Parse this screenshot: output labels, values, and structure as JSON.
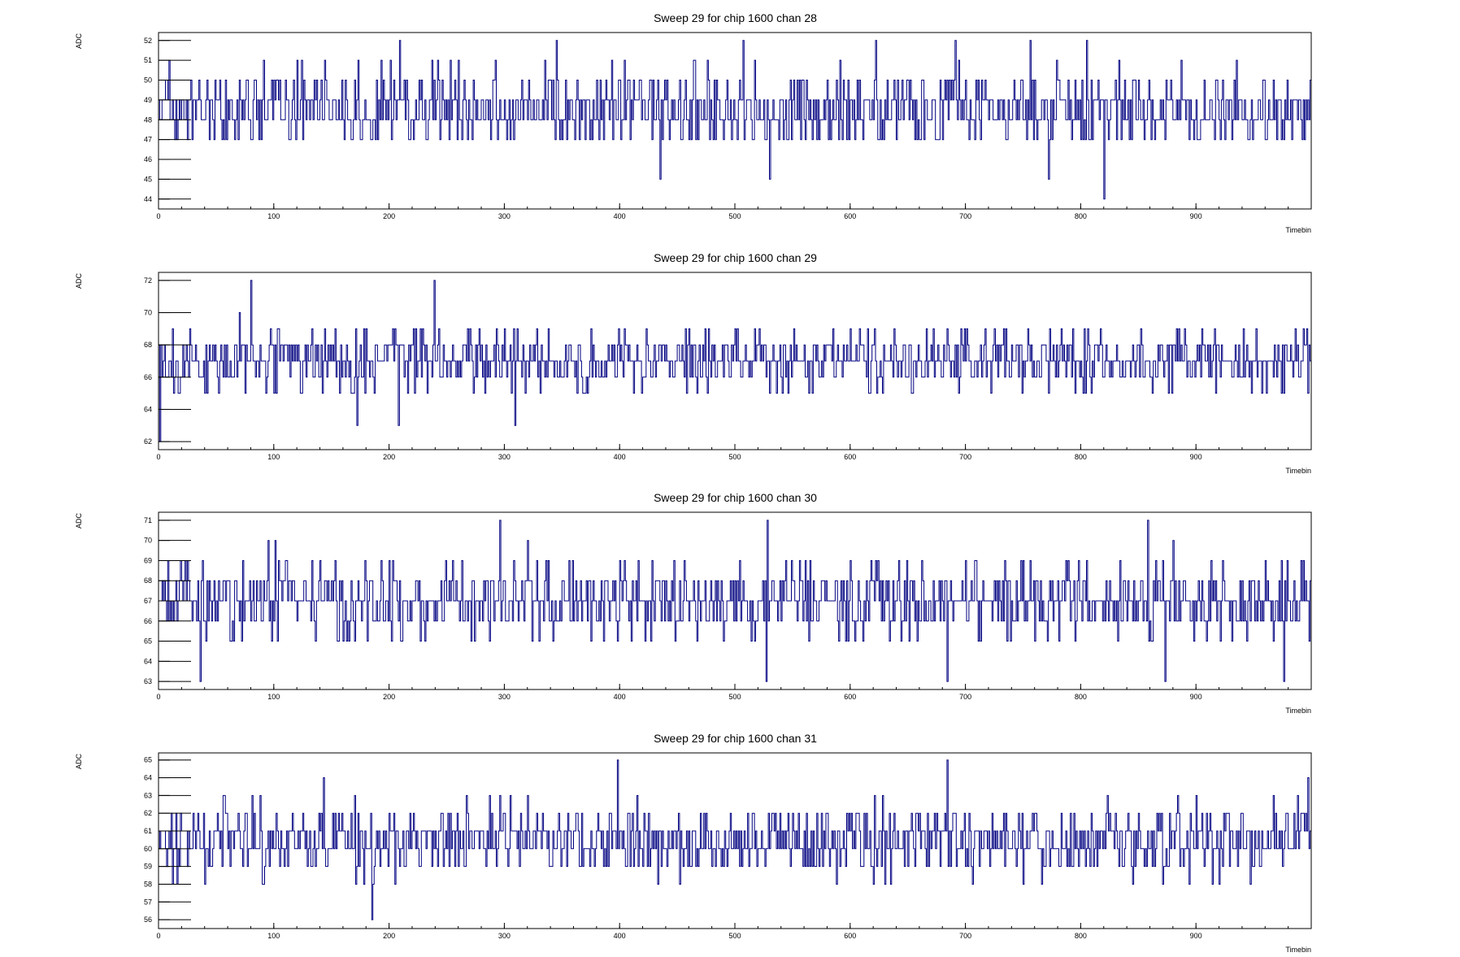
{
  "chart_data": [
    {
      "type": "line",
      "title": "Sweep 29 for chip 1600 chan 28",
      "xlabel": "Timebin",
      "ylabel": "ADC",
      "xlim": [
        0,
        1000
      ],
      "ylim": [
        43.5,
        52.4
      ],
      "x_ticks": [
        0,
        100,
        200,
        300,
        400,
        500,
        600,
        700,
        800,
        900
      ],
      "y_ticks": [
        44,
        45,
        46,
        47,
        48,
        49,
        50,
        51,
        52
      ],
      "series": [
        {
          "values_pattern": "step noise trace, 1000 timebins, mostly 47-51, occasional 44-46 and 52",
          "values": []
        }
      ],
      "baseline": 48.5,
      "peaks": [
        [
          209,
          52
        ],
        [
          345,
          52
        ],
        [
          507,
          52
        ],
        [
          622,
          52
        ],
        [
          691,
          52
        ],
        [
          756,
          52
        ],
        [
          805,
          52
        ],
        [
          820,
          44
        ],
        [
          435,
          45
        ],
        [
          530,
          45
        ],
        [
          772,
          45
        ]
      ],
      "seed": 28,
      "amp_lo": 47,
      "amp_hi": 51,
      "line_color": "#000080",
      "grid": false
    },
    {
      "type": "line",
      "title": "Sweep 29 for chip 1600 chan 29",
      "xlabel": "Timebin",
      "ylabel": "ADC",
      "xlim": [
        0,
        1000
      ],
      "ylim": [
        61.5,
        72.5
      ],
      "x_ticks": [
        0,
        100,
        200,
        300,
        400,
        500,
        600,
        700,
        800,
        900
      ],
      "y_ticks": [
        62,
        64,
        66,
        68,
        70,
        72
      ],
      "series": [
        {
          "values_pattern": "step noise trace, 1000 timebins, mostly 65-70, occasional 62-64 and 71-72",
          "values": []
        }
      ],
      "baseline": 67,
      "peaks": [
        [
          80,
          72
        ],
        [
          239,
          72
        ],
        [
          172,
          63
        ],
        [
          208,
          63
        ],
        [
          309,
          63
        ],
        [
          1,
          62
        ]
      ],
      "seed": 29,
      "amp_lo": 65,
      "amp_hi": 70,
      "line_color": "#000080",
      "grid": false
    },
    {
      "type": "line",
      "title": "Sweep 29 for chip 1600 chan 30",
      "xlabel": "Timebin",
      "ylabel": "ADC",
      "xlim": [
        0,
        1000
      ],
      "ylim": [
        62.6,
        71.4
      ],
      "x_ticks": [
        0,
        100,
        200,
        300,
        400,
        500,
        600,
        700,
        800,
        900
      ],
      "y_ticks": [
        63,
        64,
        65,
        66,
        67,
        68,
        69,
        70,
        71
      ],
      "series": [
        {
          "values_pattern": "step noise trace, 1000 timebins, mostly 65-70, occasional 63-64 and 71",
          "values": []
        }
      ],
      "baseline": 67,
      "peaks": [
        [
          296,
          71
        ],
        [
          528,
          71
        ],
        [
          858,
          71
        ],
        [
          36,
          63
        ],
        [
          527,
          63
        ],
        [
          684,
          63
        ],
        [
          873,
          63
        ],
        [
          976,
          63
        ]
      ],
      "seed": 30,
      "amp_lo": 65,
      "amp_hi": 70,
      "line_color": "#000080",
      "grid": false
    },
    {
      "type": "line",
      "title": "Sweep 29 for chip 1600 chan 31",
      "xlabel": "Timebin",
      "ylabel": "ADC",
      "xlim": [
        0,
        1000
      ],
      "ylim": [
        55.5,
        65.4
      ],
      "x_ticks": [
        0,
        100,
        200,
        300,
        400,
        500,
        600,
        700,
        800,
        900
      ],
      "y_ticks": [
        56,
        57,
        58,
        59,
        60,
        61,
        62,
        63,
        64,
        65
      ],
      "series": [
        {
          "values_pattern": "step noise trace, 1000 timebins, mostly 58-63, occasional 56-57 and 64-65",
          "values": []
        }
      ],
      "baseline": 60.5,
      "peaks": [
        [
          398,
          65
        ],
        [
          684,
          65
        ],
        [
          185,
          56
        ],
        [
          997,
          64
        ],
        [
          143,
          64
        ]
      ],
      "seed": 31,
      "amp_lo": 58,
      "amp_hi": 63,
      "line_color": "#000080",
      "grid": false
    }
  ]
}
